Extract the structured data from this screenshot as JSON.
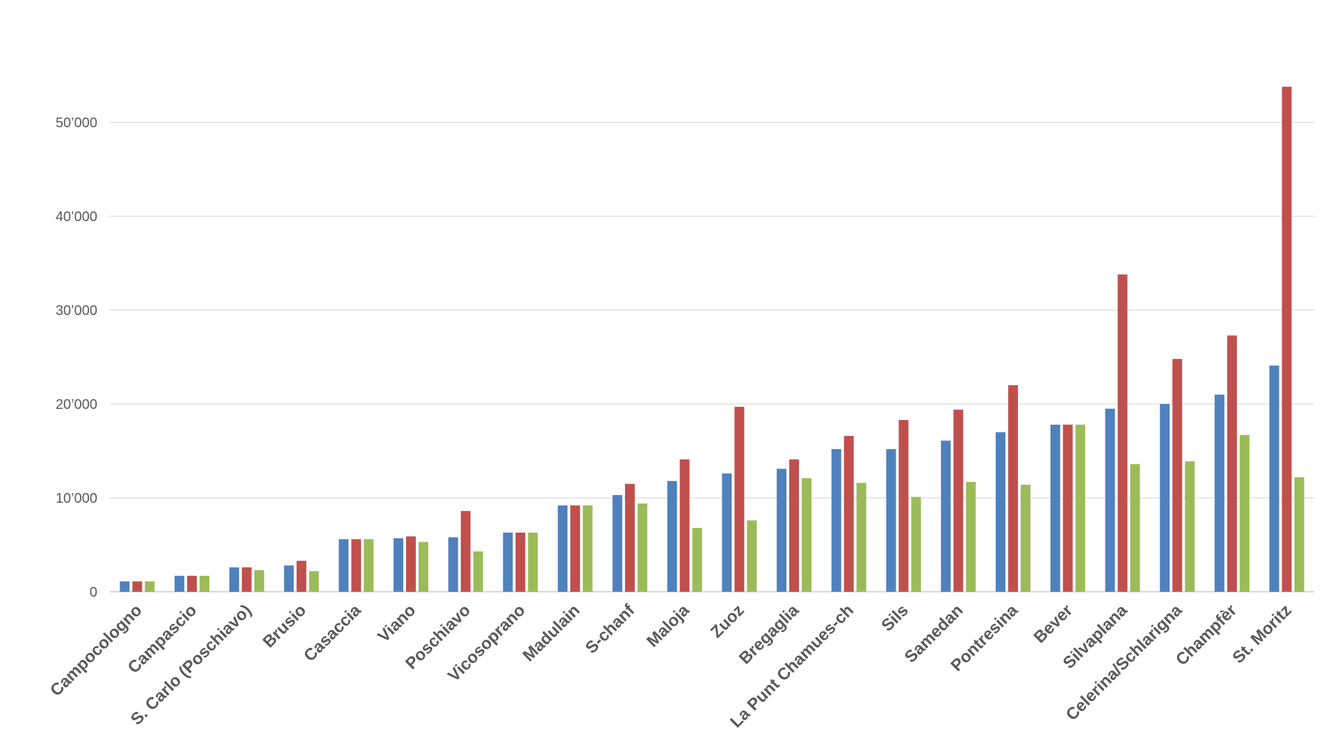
{
  "chart_data": {
    "type": "bar",
    "categories": [
      "Campocologno",
      "Campascio",
      "S. Carlo (Poschiavo)",
      "Brusio",
      "Casaccia",
      "Viano",
      "Poschiavo",
      "Vicosoprano",
      "Madulain",
      "S-chanf",
      "Maloja",
      "Zuoz",
      "Bregaglia",
      "La Punt Chamues-ch",
      "Sils",
      "Samedan",
      "Pontresina",
      "Bever",
      "Silvaplana",
      "Celerina/Schlarigna",
      "Champfèr",
      "St. Moritz"
    ],
    "series": [
      {
        "color": "#4f81bd",
        "values": [
          1100,
          1700,
          2600,
          2800,
          5600,
          5700,
          5800,
          6300,
          9200,
          10300,
          11800,
          12600,
          13100,
          15200,
          15200,
          16100,
          17000,
          17800,
          19500,
          20000,
          21000,
          24100
        ]
      },
      {
        "color": "#c0504d",
        "values": [
          1100,
          1700,
          2600,
          3300,
          5600,
          5900,
          8600,
          6300,
          9200,
          11500,
          14100,
          19700,
          14100,
          16600,
          18300,
          19400,
          22000,
          17800,
          33800,
          24800,
          27300,
          53800
        ]
      },
      {
        "color": "#9bbb59",
        "values": [
          1100,
          1700,
          2300,
          2200,
          5600,
          5300,
          4300,
          6300,
          9200,
          9400,
          6800,
          7600,
          12100,
          11600,
          10100,
          11700,
          11400,
          17800,
          13600,
          13900,
          16700,
          12200
        ]
      }
    ],
    "yticks": [
      "0",
      "10’000",
      "20’000",
      "30’000",
      "40’000",
      "50’000"
    ],
    "ytick_values": [
      0,
      10000,
      20000,
      30000,
      40000,
      50000
    ],
    "ylim": [
      0,
      56000
    ],
    "grid": true
  }
}
